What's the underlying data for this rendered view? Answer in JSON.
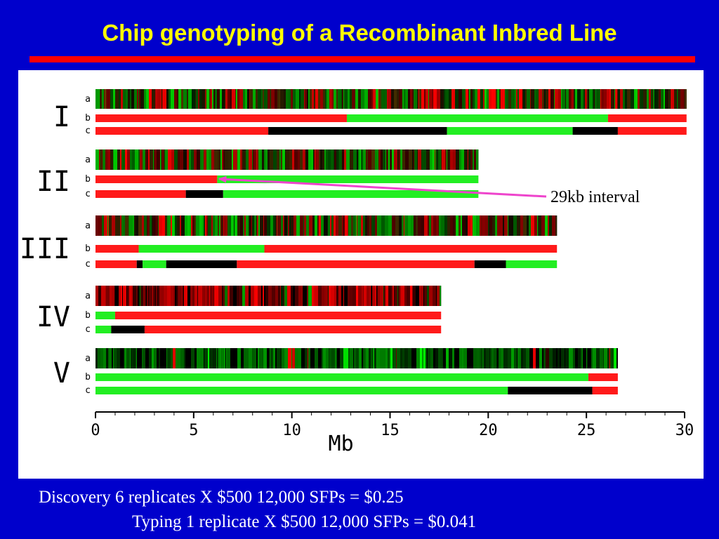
{
  "title": "Chip genotyping of a Recombinant Inbred Line",
  "annotation": "29kb interval",
  "footer": {
    "line1": "Discovery 6 replicates X $500 12,000 SFPs = $0.25",
    "line2": "Typing 1 replicate X $500 12,000 SFPs = $0.041"
  },
  "colors": {
    "red": "#ff1a1a",
    "green": "#22ee22",
    "black": "#000000",
    "arrow": "#ee44cc",
    "background": "#0000cc",
    "title": "#ffff00"
  },
  "chart_data": {
    "type": "genotype-map",
    "xlabel": "Mb",
    "xlim": [
      0,
      30
    ],
    "xticks": [
      0,
      5,
      10,
      15,
      20,
      25,
      30
    ],
    "track_labels": [
      "a",
      "b",
      "c"
    ],
    "chromosomes": [
      {
        "name": "I",
        "length": 30.1,
        "seed": 7,
        "a_tone": "mixed",
        "b": [
          [
            0,
            12.8,
            "red"
          ],
          [
            12.8,
            26.1,
            "green"
          ],
          [
            26.1,
            30.1,
            "red"
          ]
        ],
        "c": [
          [
            0,
            8.8,
            "red"
          ],
          [
            8.8,
            17.9,
            "black"
          ],
          [
            17.9,
            24.3,
            "green"
          ],
          [
            24.3,
            26.6,
            "black"
          ],
          [
            26.6,
            30.1,
            "red"
          ]
        ]
      },
      {
        "name": "II",
        "length": 19.5,
        "seed": 11,
        "a_tone": "mixed",
        "b": [
          [
            0,
            6.2,
            "red"
          ],
          [
            6.2,
            19.5,
            "green"
          ]
        ],
        "c": [
          [
            0,
            4.6,
            "red"
          ],
          [
            4.6,
            6.5,
            "black"
          ],
          [
            6.5,
            19.5,
            "green"
          ]
        ]
      },
      {
        "name": "III",
        "length": 23.5,
        "seed": 19,
        "a_tone": "mixed",
        "b": [
          [
            0,
            2.2,
            "red"
          ],
          [
            2.2,
            8.6,
            "green"
          ],
          [
            8.6,
            23.5,
            "red"
          ]
        ],
        "c": [
          [
            0,
            2.1,
            "red"
          ],
          [
            2.1,
            2.4,
            "black"
          ],
          [
            2.4,
            3.6,
            "green"
          ],
          [
            3.6,
            7.2,
            "black"
          ],
          [
            7.2,
            19.3,
            "red"
          ],
          [
            19.3,
            20.9,
            "black"
          ],
          [
            20.9,
            23.5,
            "green"
          ]
        ]
      },
      {
        "name": "IV",
        "length": 17.6,
        "seed": 23,
        "a_tone": "red",
        "b": [
          [
            0,
            1.0,
            "green"
          ],
          [
            1.0,
            17.6,
            "red"
          ]
        ],
        "c": [
          [
            0,
            0.8,
            "green"
          ],
          [
            0.8,
            2.5,
            "black"
          ],
          [
            2.5,
            17.6,
            "red"
          ]
        ]
      },
      {
        "name": "V",
        "length": 26.6,
        "seed": 31,
        "a_tone": "green",
        "b": [
          [
            0,
            25.1,
            "green"
          ],
          [
            25.1,
            26.6,
            "red"
          ]
        ],
        "c": [
          [
            0,
            21.0,
            "green"
          ],
          [
            21.0,
            25.3,
            "black"
          ],
          [
            25.3,
            26.6,
            "red"
          ]
        ]
      }
    ],
    "arrow": {
      "chromosome": "II",
      "track": "b",
      "position_mb": 6.2
    }
  }
}
